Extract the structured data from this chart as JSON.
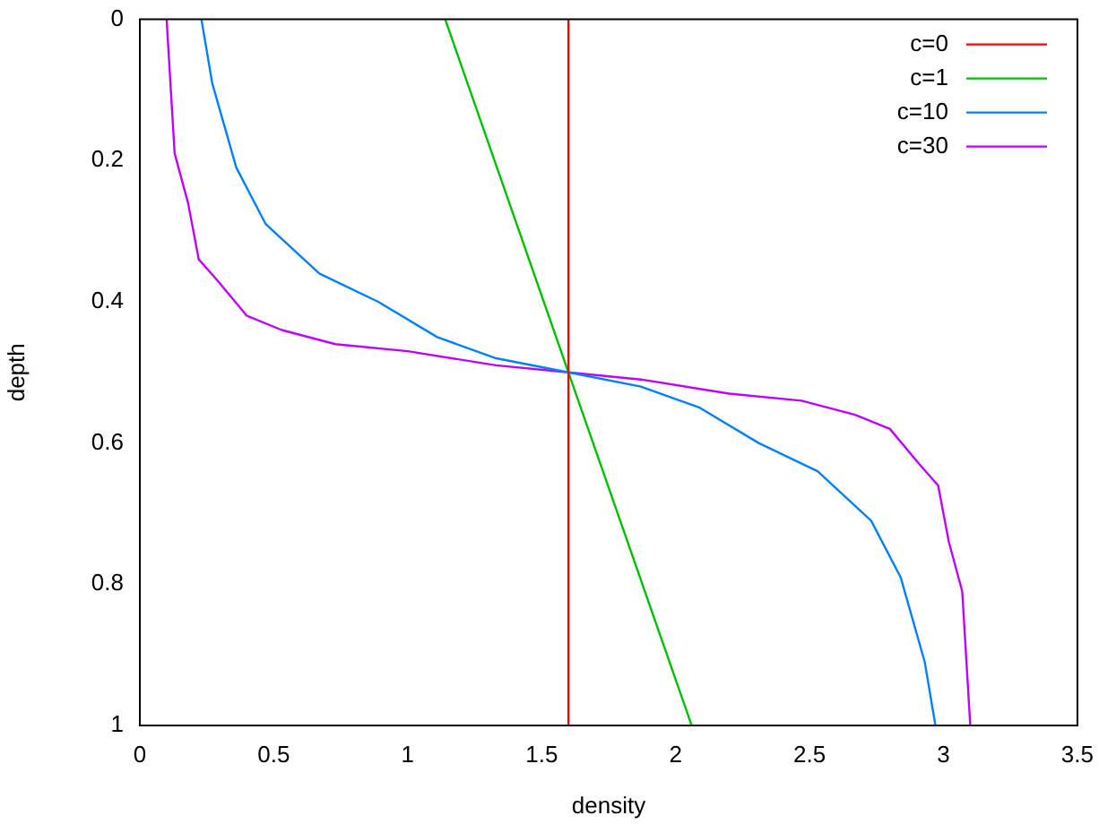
{
  "chart_data": {
    "type": "line",
    "xlabel": "density",
    "ylabel": "depth",
    "xlim": [
      0,
      3.5
    ],
    "xticks": [
      0,
      0.5,
      1,
      1.5,
      2,
      2.5,
      3,
      3.5
    ],
    "ylim": [
      1,
      0
    ],
    "yticks": [
      0,
      0.2,
      0.4,
      0.6,
      0.8,
      1
    ],
    "grid": false,
    "legend": "top right",
    "marker": "none",
    "line_style": "solid",
    "series": [
      {
        "name": "c=0",
        "color": "#ff0000",
        "x": [
          1.6,
          1.6
        ],
        "values": [
          0,
          1
        ]
      },
      {
        "name": "c=1",
        "color": "#00c000",
        "x": [
          1.14,
          2.06
        ],
        "values": [
          0,
          1
        ]
      },
      {
        "name": "c=10",
        "color": "#0080ff",
        "x": [
          0.23,
          0.27,
          0.36,
          0.47,
          0.67,
          0.89,
          1.11,
          1.33,
          1.6,
          1.87,
          2.09,
          2.31,
          2.53,
          2.73,
          2.84,
          2.93,
          2.97
        ],
        "values": [
          0,
          0.09,
          0.21,
          0.29,
          0.36,
          0.4,
          0.45,
          0.48,
          0.5,
          0.52,
          0.55,
          0.6,
          0.64,
          0.71,
          0.79,
          0.91,
          1
        ]
      },
      {
        "name": "c=30",
        "color": "#c000ff",
        "x": [
          0.1,
          0.13,
          0.18,
          0.22,
          0.29,
          0.4,
          0.53,
          0.73,
          1.0,
          1.33,
          1.6,
          1.87,
          2.2,
          2.47,
          2.67,
          2.8,
          2.91,
          2.98,
          3.02,
          3.07,
          3.1
        ],
        "values": [
          0,
          0.19,
          0.26,
          0.34,
          0.37,
          0.42,
          0.44,
          0.46,
          0.47,
          0.49,
          0.5,
          0.51,
          0.53,
          0.54,
          0.56,
          0.58,
          0.63,
          0.66,
          0.74,
          0.81,
          1
        ]
      }
    ]
  }
}
